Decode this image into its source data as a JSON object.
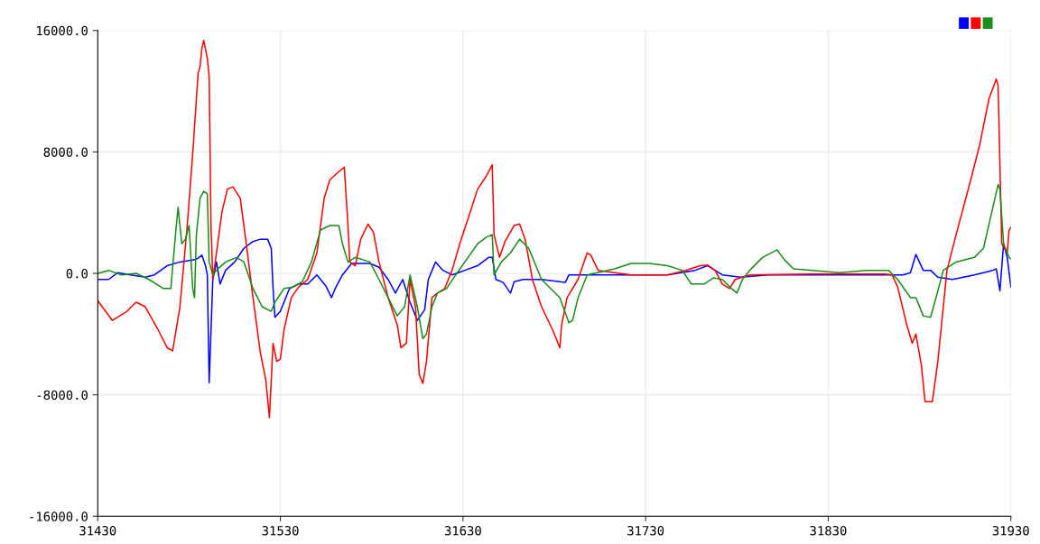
{
  "chart_data": {
    "type": "line",
    "xlim": [
      31430,
      31930
    ],
    "xticks": [
      31430,
      31530,
      31630,
      31730,
      31830,
      31930
    ],
    "ylim": [
      -16000,
      16000
    ],
    "yticks": [
      {
        "value": -16000,
        "label": "-16000.0"
      },
      {
        "value": -8000,
        "label": "-8000.0"
      },
      {
        "value": 0,
        "label": "0.0"
      },
      {
        "value": 8000,
        "label": "8000.0"
      },
      {
        "value": 16000,
        "label": "16000.0"
      }
    ],
    "grid": true,
    "marker": "none",
    "line_style": "solid",
    "series": [
      {
        "color": "#0000ff",
        "x": [
          31430,
          31436,
          31441,
          31448,
          31456,
          31461,
          31468,
          31475,
          31483,
          31485,
          31487,
          31489,
          31490,
          31491,
          31493,
          31495,
          31497,
          31500,
          31505,
          31510,
          31515,
          31519,
          31523,
          31525,
          31526,
          31527,
          31530,
          31535,
          31540,
          31545,
          31550,
          31555,
          31558,
          31560,
          31564,
          31569,
          31579,
          31584,
          31589,
          31593,
          31597,
          31601,
          31605,
          31609,
          31611,
          31615,
          31619,
          31624,
          31631,
          31638,
          31644,
          31646,
          31648,
          31652,
          31656,
          31658,
          31663,
          31673,
          31683,
          31686,
          31688,
          31693,
          31703,
          31722,
          31742,
          31757,
          31764,
          31772,
          31782,
          31797,
          31821,
          31851,
          31871,
          31875,
          31878,
          31882,
          31886,
          31890,
          31898,
          31910,
          31920,
          31922,
          31924,
          31926,
          31928,
          31930
        ],
        "values": [
          -400,
          -400,
          50,
          -100,
          -250,
          -100,
          500,
          750,
          900,
          1000,
          1200,
          500,
          -100,
          -7200,
          -400,
          750,
          -700,
          200,
          750,
          1650,
          2100,
          2250,
          2250,
          1650,
          -1000,
          -2900,
          -2500,
          -1000,
          -700,
          -700,
          -100,
          -850,
          -1600,
          -1000,
          -100,
          650,
          650,
          400,
          -400,
          -1300,
          -400,
          -1900,
          -3100,
          -2400,
          -400,
          750,
          200,
          -100,
          200,
          500,
          1050,
          1050,
          -400,
          -600,
          -1300,
          -550,
          -400,
          -400,
          -550,
          -600,
          -100,
          -100,
          -100,
          -100,
          -100,
          200,
          500,
          -100,
          -250,
          -100,
          -100,
          -100,
          -100,
          50,
          1250,
          200,
          200,
          -250,
          -400,
          -100,
          200,
          300,
          -1150,
          1950,
          1050,
          -900
        ]
      },
      {
        "color": "#ff0000",
        "x": [
          31430,
          31438,
          31446,
          31451,
          31456,
          31463,
          31468,
          31471,
          31475,
          31479,
          31482,
          31484,
          31485,
          31486,
          31487,
          31488,
          31490,
          31491,
          31492,
          31493,
          31495,
          31498,
          31501,
          31504,
          31508,
          31511,
          31515,
          31519,
          31522,
          31524,
          31526,
          31528,
          31530,
          31532,
          31536,
          31540,
          31545,
          31550,
          31554,
          31557,
          31562,
          31565,
          31567,
          31568,
          31571,
          31574,
          31578,
          31581,
          31584,
          31589,
          31594,
          31596,
          31599,
          31601,
          31604,
          31606,
          31608,
          31610,
          31613,
          31616,
          31620,
          31624,
          31629,
          31634,
          31638,
          31643,
          31646,
          31647,
          31650,
          31653,
          31658,
          31661,
          31664,
          31668,
          31673,
          31679,
          31683,
          31684,
          31687,
          31693,
          31698,
          31700,
          31704,
          31722,
          31742,
          31752,
          31760,
          31764,
          31768,
          31772,
          31776,
          31779,
          31787,
          31821,
          31861,
          31865,
          31868,
          31873,
          31876,
          31878,
          31881,
          31883,
          31887,
          31890,
          31895,
          31900,
          31908,
          31913,
          31918,
          31922,
          31923,
          31925,
          31928,
          31929,
          31930
        ],
        "values": [
          -1800,
          -3100,
          -2500,
          -1900,
          -2200,
          -3700,
          -4900,
          -5100,
          -2200,
          3150,
          7900,
          11500,
          13200,
          13600,
          14800,
          15350,
          14150,
          13000,
          3150,
          -400,
          1350,
          4050,
          5550,
          5700,
          4950,
          2250,
          -1600,
          -5200,
          -7000,
          -9500,
          -4600,
          -5800,
          -5650,
          -3700,
          -1600,
          -900,
          -400,
          1350,
          4950,
          6150,
          6700,
          7000,
          3150,
          750,
          500,
          2250,
          3250,
          2700,
          750,
          -1600,
          -3400,
          -4900,
          -4600,
          -400,
          -2200,
          -6650,
          -7250,
          -5800,
          -1600,
          -1300,
          -1000,
          200,
          2250,
          4050,
          5550,
          6450,
          7150,
          2550,
          1050,
          2100,
          3150,
          3250,
          2250,
          -400,
          -2200,
          -3700,
          -4900,
          -3400,
          -1600,
          -400,
          1350,
          1200,
          200,
          -100,
          -100,
          200,
          500,
          550,
          200,
          -700,
          -1000,
          -400,
          -100,
          -50,
          -50,
          -100,
          -900,
          -3400,
          -4600,
          -4000,
          -6050,
          -8450,
          -8450,
          -5800,
          200,
          2550,
          6150,
          8500,
          11500,
          12800,
          12400,
          1950,
          1350,
          2850,
          3050
        ]
      },
      {
        "color": "#1a8c1a",
        "x": [
          31430,
          31436,
          31443,
          31451,
          31458,
          31466,
          31470,
          31473,
          31474,
          31476,
          31478,
          31480,
          31482,
          31483,
          31484,
          31486,
          31488,
          31490,
          31491,
          31493,
          31495,
          31500,
          31506,
          31510,
          31515,
          31520,
          31525,
          31527,
          31532,
          31537,
          31542,
          31547,
          31552,
          31557,
          31562,
          31564,
          31567,
          31571,
          31579,
          31584,
          31589,
          31594,
          31598,
          31601,
          31605,
          31608,
          31610,
          31613,
          31616,
          31621,
          31626,
          31631,
          31638,
          31643,
          31646,
          31647,
          31651,
          31656,
          31661,
          31666,
          31673,
          31683,
          31688,
          31690,
          31693,
          31698,
          31713,
          31722,
          31732,
          31742,
          31750,
          31755,
          31762,
          31767,
          31772,
          31777,
          31780,
          31783,
          31787,
          31794,
          31802,
          31806,
          31811,
          31821,
          31836,
          31851,
          31863,
          31868,
          31875,
          31878,
          31882,
          31886,
          31889,
          31893,
          31900,
          31910,
          31915,
          31919,
          31923,
          31924,
          31926,
          31929,
          31930
        ],
        "values": [
          0,
          200,
          -100,
          0,
          -400,
          -1000,
          -1000,
          3150,
          4350,
          1950,
          2250,
          3150,
          -1000,
          -1600,
          2550,
          4950,
          5400,
          5250,
          750,
          -100,
          200,
          750,
          1050,
          750,
          -1000,
          -2200,
          -2500,
          -1900,
          -1000,
          -900,
          -550,
          750,
          2850,
          3150,
          3150,
          1950,
          750,
          1050,
          750,
          -400,
          -1600,
          -2800,
          -2200,
          -100,
          -2200,
          -4300,
          -4000,
          -2200,
          -1300,
          -1000,
          -100,
          750,
          1950,
          2400,
          2550,
          -100,
          750,
          1350,
          2250,
          1650,
          -400,
          -1600,
          -3250,
          -3100,
          -1600,
          -100,
          300,
          650,
          650,
          500,
          200,
          -700,
          -700,
          -300,
          -400,
          -1000,
          -1300,
          -400,
          200,
          1050,
          1550,
          900,
          300,
          200,
          50,
          200,
          200,
          -400,
          -1600,
          -1600,
          -2800,
          -2900,
          -1600,
          200,
          750,
          1050,
          1650,
          3750,
          5850,
          5550,
          1950,
          1050,
          950
        ]
      }
    ]
  }
}
